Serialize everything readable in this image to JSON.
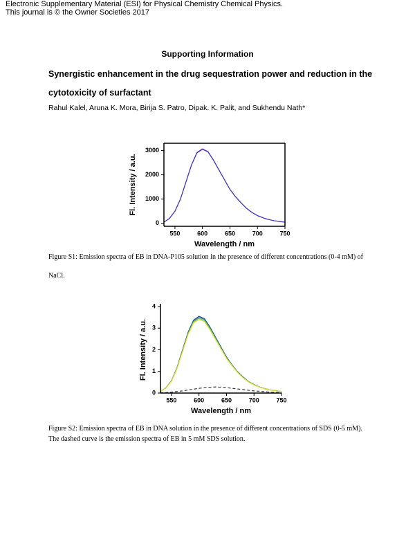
{
  "header": {
    "line1": "Electronic Supplementary Material (ESI) for Physical Chemistry Chemical Physics.",
    "line2": "This journal is © the Owner Societies 2017"
  },
  "heading": "Supporting Information",
  "title": "Synergistic enhancement in the drug sequestration power and reduction in the cytotoxicity of surfactant",
  "authors": "Rahul Kalel, Aruna K. Mora, Birija S. Patro, Dipak. K. Palit, and Sukhendu Nath*",
  "captions": [
    "Figure S1: Emission spectra of EB in DNA-P105 solution in the presence of different concentrations (0-4 mM) of NaCl.",
    "Figure S2: Emission spectra of EB in DNA solution in the presence of different concentrations of SDS (0-5 mM). The dashed curve is the emission spectra of EB in 5 mM SDS solution."
  ],
  "chart_data": [
    {
      "type": "line",
      "x_label": "Wavelength / nm",
      "y_label": "Fl. Intensity / a.u.",
      "x": [
        530,
        540,
        550,
        560,
        570,
        580,
        590,
        600,
        610,
        620,
        630,
        640,
        650,
        660,
        670,
        680,
        690,
        700,
        710,
        720,
        730,
        740,
        750
      ],
      "xlim": [
        530,
        750
      ],
      "xticks": [
        550,
        600,
        650,
        700,
        750
      ],
      "ylim": [
        -120,
        3300
      ],
      "yticks": [
        0,
        1000,
        2000,
        3000
      ],
      "series": [
        {
          "color": "#c0306a",
          "style": "solid",
          "values": [
            50,
            200,
            500,
            1000,
            1700,
            2400,
            2920,
            3070,
            2960,
            2610,
            2200,
            1800,
            1400,
            1100,
            850,
            620,
            450,
            320,
            230,
            160,
            110,
            80,
            50
          ]
        },
        {
          "color": "#3a3ad0",
          "style": "solid",
          "values": [
            50,
            200,
            500,
            1000,
            1700,
            2400,
            2900,
            3050,
            2950,
            2600,
            2200,
            1800,
            1400,
            1100,
            850,
            620,
            450,
            320,
            230,
            160,
            110,
            80,
            50
          ]
        }
      ]
    },
    {
      "type": "line",
      "x_label": "Wavelength / nm",
      "y_label": "Fl. Intensity / a.u.",
      "x": [
        530,
        540,
        550,
        560,
        570,
        580,
        590,
        600,
        610,
        620,
        630,
        640,
        650,
        660,
        670,
        680,
        690,
        700,
        710,
        720,
        730,
        740,
        750
      ],
      "xlim": [
        530,
        750
      ],
      "xticks": [
        550,
        600,
        650,
        700,
        750
      ],
      "ylim": [
        0,
        4
      ],
      "yticks": [
        0,
        1,
        2,
        3,
        4
      ],
      "series": [
        {
          "color": "#2c3fb0",
          "style": "solid",
          "values": [
            0.07,
            0.25,
            0.57,
            1.17,
            1.99,
            2.8,
            3.37,
            3.55,
            3.44,
            3.05,
            2.59,
            2.13,
            1.67,
            1.31,
            0.99,
            0.75,
            0.53,
            0.39,
            0.28,
            0.2,
            0.14,
            0.11,
            0.07
          ]
        },
        {
          "color": "#1f8a8a",
          "style": "solid",
          "values": [
            0.07,
            0.25,
            0.56,
            1.16,
            1.96,
            2.77,
            3.33,
            3.5,
            3.4,
            3.01,
            2.56,
            2.1,
            1.65,
            1.3,
            0.98,
            0.74,
            0.53,
            0.39,
            0.28,
            0.19,
            0.14,
            0.11,
            0.07
          ]
        },
        {
          "color": "#7cc24a",
          "style": "solid",
          "values": [
            0.07,
            0.24,
            0.55,
            1.14,
            1.93,
            2.73,
            3.28,
            3.45,
            3.35,
            2.97,
            2.52,
            2.07,
            1.62,
            1.28,
            0.97,
            0.72,
            0.52,
            0.38,
            0.28,
            0.19,
            0.14,
            0.1,
            0.07
          ]
        },
        {
          "color": "#e8e030",
          "style": "solid",
          "values": [
            0.07,
            0.24,
            0.54,
            1.12,
            1.9,
            2.69,
            3.23,
            3.4,
            3.3,
            2.92,
            2.48,
            2.04,
            1.6,
            1.26,
            0.95,
            0.71,
            0.51,
            0.37,
            0.27,
            0.19,
            0.14,
            0.1,
            0.07
          ]
        },
        {
          "color": "#333333",
          "style": "dashed",
          "values": [
            0.01,
            0.02,
            0.04,
            0.07,
            0.1,
            0.14,
            0.18,
            0.22,
            0.25,
            0.27,
            0.28,
            0.27,
            0.25,
            0.22,
            0.19,
            0.16,
            0.13,
            0.1,
            0.08,
            0.06,
            0.04,
            0.03,
            0.02
          ]
        }
      ]
    }
  ]
}
